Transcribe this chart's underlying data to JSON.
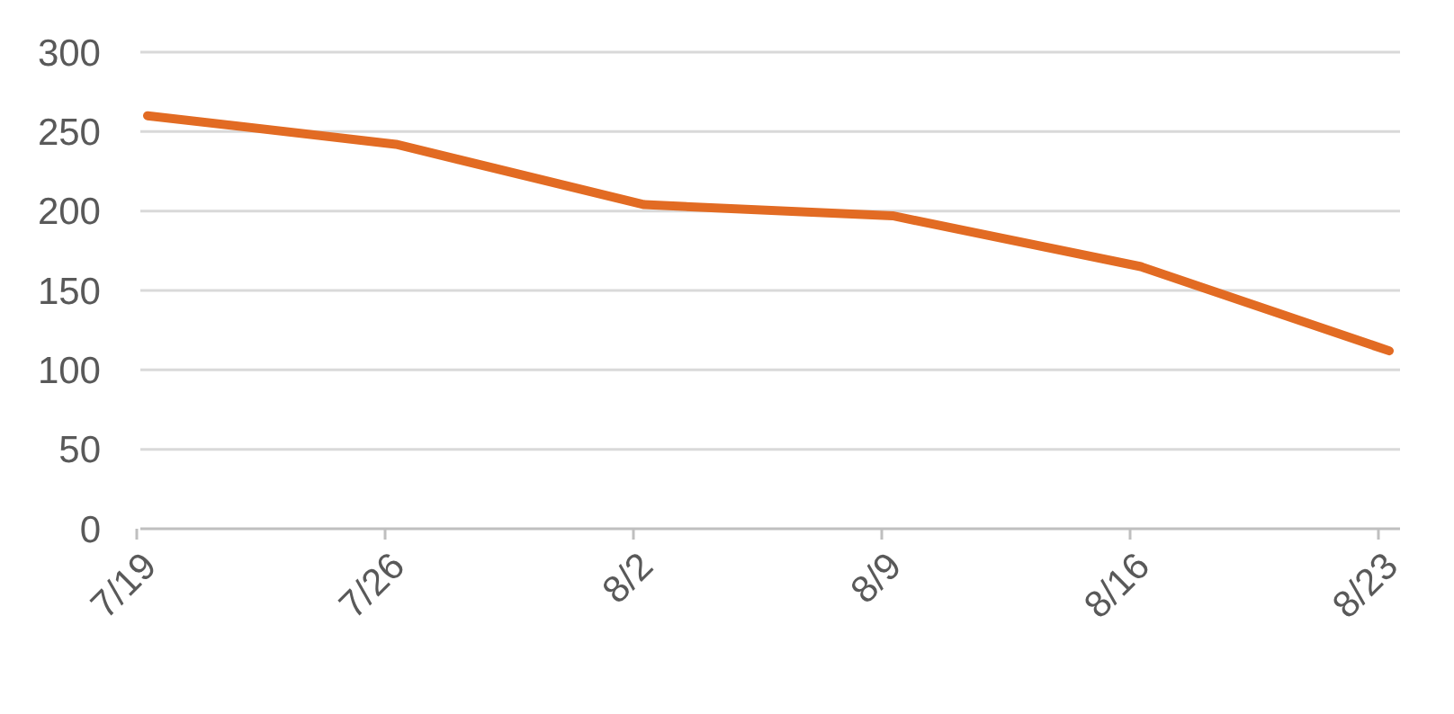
{
  "chart_data": {
    "type": "line",
    "categories": [
      "7/19",
      "7/26",
      "8/2",
      "8/9",
      "8/16",
      "8/23"
    ],
    "series": [
      {
        "color": "#e26b23",
        "values": [
          260,
          242,
          204,
          197,
          165,
          112
        ]
      }
    ],
    "ylim": [
      0,
      300
    ],
    "yticks": [
      0,
      50,
      100,
      150,
      200,
      250,
      300
    ],
    "grid": "y",
    "marker": "none",
    "line_style": "solid"
  }
}
